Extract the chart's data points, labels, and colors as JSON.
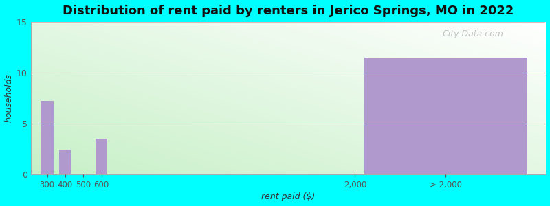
{
  "title": "Distribution of rent paid by renters in Jerico Springs, MO in 2022",
  "xlabel": "rent paid ($)",
  "ylabel": "households",
  "background_color": "#00FFFF",
  "bar_color": "#b099cc",
  "ylim": [
    0,
    15
  ],
  "yticks": [
    0,
    5,
    10,
    15
  ],
  "title_fontsize": 13,
  "axis_label_fontsize": 9,
  "watermark": "City-Data.com",
  "bar_positions": [
    300,
    400,
    500,
    600,
    2500
  ],
  "bar_values": [
    7.2,
    2.4,
    0,
    3.5,
    11.5
  ],
  "bar_widths": [
    75,
    65,
    65,
    65,
    900
  ],
  "xlim_left": 210,
  "xlim_right": 3050,
  "xtick_positions": [
    300,
    400,
    500,
    600,
    2000,
    2500
  ],
  "xtick_labels": [
    "300",
    "400",
    "500",
    "600",
    "2,000",
    "> 2,000"
  ],
  "gradient_colors": [
    "#c8efc8",
    "#e8f8e8",
    "#f4fcf4",
    "#f8fff8",
    "#ffffff"
  ]
}
